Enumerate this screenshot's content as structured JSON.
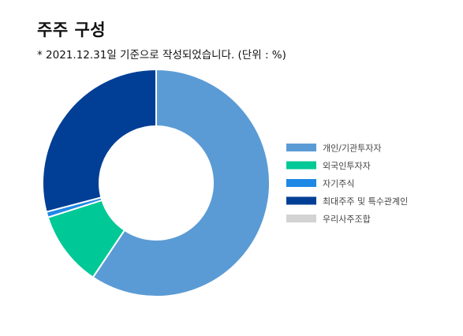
{
  "header": {
    "title": "주주 구성",
    "subtitle": "* 2021.12.31일 기준으로 작성되었습니다. (단위 : %)"
  },
  "chart_data": {
    "type": "pie",
    "style": "donut",
    "unit": "%",
    "categories": [
      "개인/기관투자자",
      "외국인투자자",
      "자기주식",
      "최대주주 및 특수관계인",
      "우리사주조합"
    ],
    "values": [
      59.4,
      10.7,
      0.8,
      29.1,
      0.0
    ],
    "colors": [
      "#5B9BD5",
      "#00C896",
      "#1E88E5",
      "#003F95",
      "#D3D3D3"
    ],
    "legend_position": "right",
    "start_angle": "top",
    "direction": "clockwise"
  }
}
